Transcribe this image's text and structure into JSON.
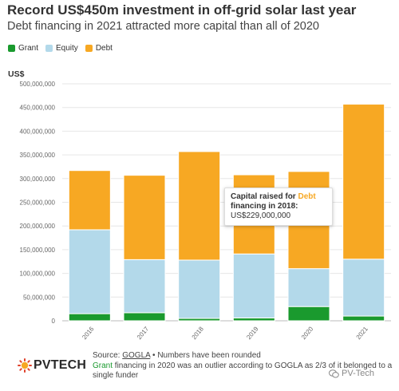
{
  "header": {
    "title": "Record US$450m investment in off-grid solar last year",
    "subtitle": "Debt financing in 2021 attracted more capital than all of 2020"
  },
  "legend": [
    {
      "label": "Grant",
      "color": "#1a9a2e"
    },
    {
      "label": "Equity",
      "color": "#b3d9ea"
    },
    {
      "label": "Debt",
      "color": "#f7a823"
    }
  ],
  "chart_data": {
    "type": "bar",
    "stacked": true,
    "categories": [
      "2016",
      "2017",
      "2018",
      "2019",
      "2020",
      "2021"
    ],
    "series": [
      {
        "name": "Grant",
        "color": "#1a9a2e",
        "values": [
          15000000,
          17000000,
          5000000,
          6000000,
          30000000,
          10000000
        ]
      },
      {
        "name": "Equity",
        "color": "#b3d9ea",
        "values": [
          177000000,
          112000000,
          123000000,
          135000000,
          80000000,
          120000000
        ]
      },
      {
        "name": "Debt",
        "color": "#f7a823",
        "values": [
          125000000,
          178000000,
          229000000,
          167000000,
          205000000,
          327000000
        ]
      }
    ],
    "ylabel": "US$",
    "ylim": [
      0,
      500000000
    ],
    "yticks": [
      "0",
      "50,000,000",
      "100,000,000",
      "150,000,000",
      "200,000,000",
      "250,000,000",
      "300,000,000",
      "350,000,000",
      "400,000,000",
      "450,000,000",
      "500,000,000"
    ],
    "grid": true,
    "legend_position": "top-left"
  },
  "tooltip": {
    "prefix": "Capital raised for ",
    "series": "Debt",
    "mid": "financing in 2018:",
    "value": "US$229,000,000"
  },
  "footer": {
    "source_prefix": "Source: ",
    "source_name": "GOGLA",
    "source_suffix": " • Numbers have been rounded",
    "note_grant": "Grant",
    "note_rest": " financing in 2020 was an outlier according to GOGLA as 2/3 of it belonged to a single funder"
  },
  "logo": {
    "text": "PVTECH"
  },
  "watermark": {
    "text": "PV-Tech"
  }
}
